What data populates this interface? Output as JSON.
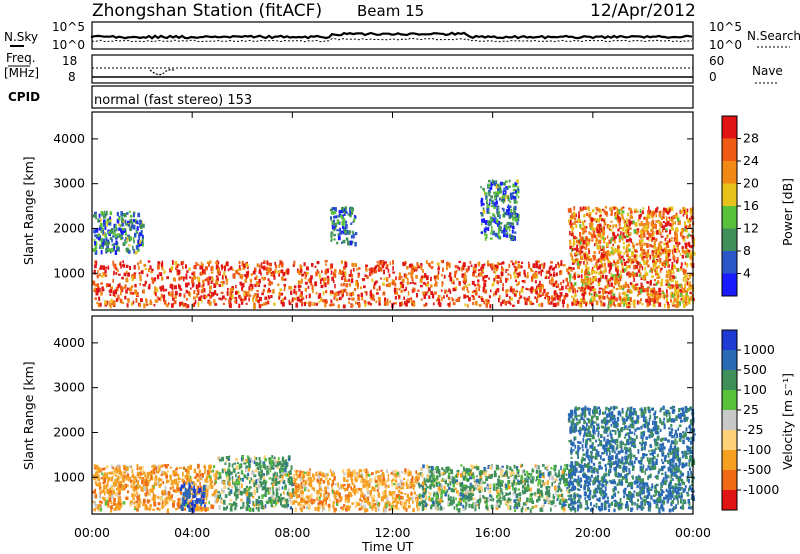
{
  "header": {
    "station": "Zhongshan Station (fitACF)",
    "beam": "Beam 15",
    "date": "12/Apr/2012"
  },
  "top_panels": {
    "nsky_label": "N.Sky",
    "nsearch_label": "N.Search",
    "nsky_ticks": [
      "10^5",
      "10^0"
    ],
    "nsearch_ticks": [
      "10^5",
      "10^0"
    ],
    "freq_label": "Freq.",
    "freq_unit": "[MHz]",
    "freq_ticks": [
      "18",
      "8"
    ],
    "nave_label": "Nave",
    "nave_ticks": [
      "60",
      "0"
    ],
    "cpid_label": "CPID",
    "cpid_text": "normal (fast stereo) 153"
  },
  "axes": {
    "ylabel": "Slant Range [km]",
    "yticks": [
      "4000",
      "3000",
      "2000",
      "1000"
    ],
    "xlabel": "Time UT",
    "xticks": [
      "00:00",
      "04:00",
      "08:00",
      "12:00",
      "16:00",
      "20:00",
      "00:00"
    ]
  },
  "colorbars": {
    "power_label": "Power [dB]",
    "power_ticks": [
      "28",
      "24",
      "20",
      "16",
      "12",
      "8",
      "4"
    ],
    "power_colors": [
      "#1a1aff",
      "#2a56c8",
      "#3e8f5a",
      "#58c03a",
      "#e6c21a",
      "#f08a14",
      "#ef5a14",
      "#e01414"
    ],
    "velocity_label": "Velocity [m s⁻¹]",
    "velocity_ticks": [
      "1000",
      "500",
      "100",
      "25",
      "-25",
      "-100",
      "-500",
      "-1000"
    ],
    "velocity_colors": [
      "#1e3cd2",
      "#2a6ab4",
      "#3e8f5a",
      "#58c03a",
      "#c8c8c8",
      "#ffd27a",
      "#f5a020",
      "#ef6a14",
      "#e01414"
    ]
  },
  "chart_data": [
    {
      "type": "heatmap",
      "title": "Zhongshan Station (fitACF) Beam 15 12/Apr/2012",
      "quantity": "Power",
      "unit": "dB",
      "xlabel": "Time UT",
      "ylabel": "Slant Range [km]",
      "xlim": [
        0,
        24
      ],
      "ylim": [
        180,
        4600
      ],
      "color_range": [
        0,
        30
      ],
      "x_ticks": [
        "00:00",
        "04:00",
        "08:00",
        "12:00",
        "16:00",
        "20:00",
        "00:00"
      ],
      "y_ticks": [
        1000,
        2000,
        3000,
        4000
      ],
      "scatter_regions": [
        {
          "time_range": [
            0,
            19
          ],
          "slant_range": [
            300,
            1300
          ],
          "typical_power_db": 26
        },
        {
          "time_range": [
            0,
            2
          ],
          "slant_range": [
            1500,
            2400
          ],
          "typical_power_db": 8
        },
        {
          "time_range": [
            9.5,
            10.5
          ],
          "slant_range": [
            1700,
            2500
          ],
          "typical_power_db": 6
        },
        {
          "time_range": [
            15.5,
            17
          ],
          "slant_range": [
            1800,
            3100
          ],
          "typical_power_db": 8
        },
        {
          "time_range": [
            19,
            24
          ],
          "slant_range": [
            300,
            2500
          ],
          "typical_power_db": 22
        }
      ]
    },
    {
      "type": "heatmap",
      "quantity": "Velocity",
      "unit": "m s⁻¹",
      "xlabel": "Time UT",
      "ylabel": "Slant Range [km]",
      "xlim": [
        0,
        24
      ],
      "ylim": [
        180,
        4600
      ],
      "color_range": [
        -1000,
        1000
      ],
      "x_ticks": [
        "00:00",
        "04:00",
        "08:00",
        "12:00",
        "16:00",
        "20:00",
        "00:00"
      ],
      "y_ticks": [
        1000,
        2000,
        3000,
        4000
      ],
      "scatter_regions": [
        {
          "time_range": [
            0,
            5
          ],
          "slant_range": [
            300,
            1300
          ],
          "typical_velocity": -300
        },
        {
          "time_range": [
            3.5,
            4.5
          ],
          "slant_range": [
            300,
            900
          ],
          "typical_velocity": 1000
        },
        {
          "time_range": [
            5,
            8
          ],
          "slant_range": [
            300,
            1500
          ],
          "typical_velocity": 200
        },
        {
          "time_range": [
            8,
            13
          ],
          "slant_range": [
            300,
            1200
          ],
          "typical_velocity": -300
        },
        {
          "time_range": [
            13,
            19
          ],
          "slant_range": [
            300,
            1300
          ],
          "typical_velocity": 200
        },
        {
          "time_range": [
            19,
            24
          ],
          "slant_range": [
            300,
            2600
          ],
          "typical_velocity": 600
        }
      ]
    }
  ]
}
